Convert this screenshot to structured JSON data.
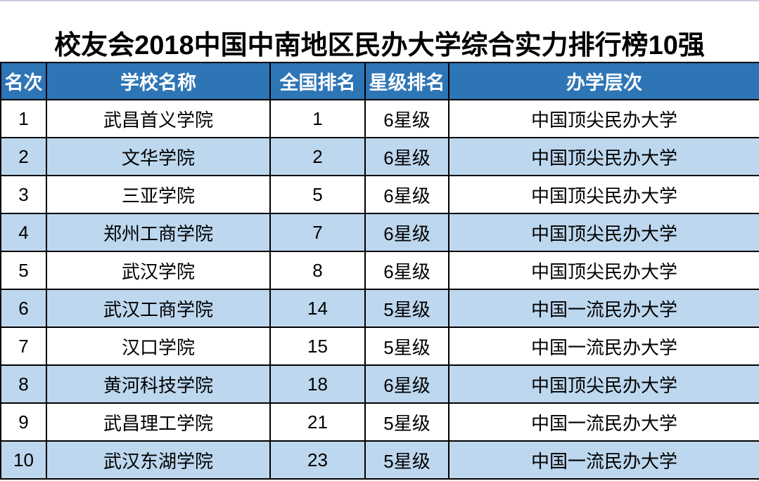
{
  "title": "校友会2018中国中南地区民办大学综合实力排行榜10强",
  "table": {
    "columns": [
      "名次",
      "学校名称",
      "全国排名",
      "星级排名",
      "办学层次"
    ],
    "rows": [
      {
        "rank": "1",
        "school": "武昌首义学院",
        "national_rank": "1",
        "star_rank": "6星级",
        "level": "中国顶尖民办大学"
      },
      {
        "rank": "2",
        "school": "文华学院",
        "national_rank": "2",
        "star_rank": "6星级",
        "level": "中国顶尖民办大学"
      },
      {
        "rank": "3",
        "school": "三亚学院",
        "national_rank": "5",
        "star_rank": "6星级",
        "level": "中国顶尖民办大学"
      },
      {
        "rank": "4",
        "school": "郑州工商学院",
        "national_rank": "7",
        "star_rank": "6星级",
        "level": "中国顶尖民办大学"
      },
      {
        "rank": "5",
        "school": "武汉学院",
        "national_rank": "8",
        "star_rank": "6星级",
        "level": "中国顶尖民办大学"
      },
      {
        "rank": "6",
        "school": "武汉工商学院",
        "national_rank": "14",
        "star_rank": "5星级",
        "level": "中国一流民办大学"
      },
      {
        "rank": "7",
        "school": "汉口学院",
        "national_rank": "15",
        "star_rank": "5星级",
        "level": "中国一流民办大学"
      },
      {
        "rank": "8",
        "school": "黄河科技学院",
        "national_rank": "18",
        "star_rank": "6星级",
        "level": "中国顶尖民办大学"
      },
      {
        "rank": "9",
        "school": "武昌理工学院",
        "national_rank": "21",
        "star_rank": "5星级",
        "level": "中国一流民办大学"
      },
      {
        "rank": "10",
        "school": "武汉东湖学院",
        "national_rank": "23",
        "star_rank": "5星级",
        "level": "中国一流民办大学"
      }
    ]
  },
  "colors": {
    "header_bg": "#2E75B6",
    "stripe_bg": "#BDD7EE",
    "row_bg": "#FFFFFF",
    "border": "#000000",
    "header_text": "#FFFFFF",
    "text": "#000000",
    "top_line": "#C9CEE4"
  }
}
